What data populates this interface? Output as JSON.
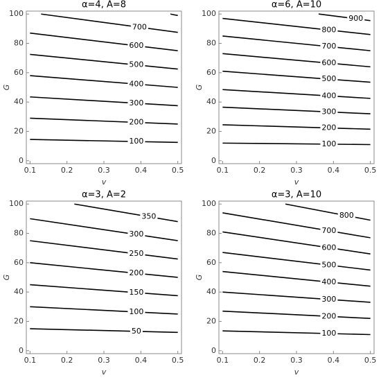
{
  "chart_data": [
    {
      "type": "contour",
      "title": "α=4, A=8",
      "x_label": "v",
      "y_label": "G",
      "xlim": [
        0.09,
        0.51
      ],
      "ylim": [
        -2,
        102
      ],
      "xticks": [
        0.1,
        0.2,
        0.3,
        0.4,
        0.5
      ],
      "yticks": [
        0,
        20,
        40,
        60,
        80,
        100
      ],
      "color": "#000000",
      "contours": [
        {
          "level": 100,
          "x": [
            0.1,
            0.5
          ],
          "y": [
            14.5,
            12.5
          ]
        },
        {
          "level": 200,
          "x": [
            0.1,
            0.5
          ],
          "y": [
            29,
            25
          ]
        },
        {
          "level": 300,
          "x": [
            0.1,
            0.5
          ],
          "y": [
            43.5,
            37.5
          ]
        },
        {
          "level": 400,
          "x": [
            0.1,
            0.5
          ],
          "y": [
            58,
            50
          ]
        },
        {
          "level": 500,
          "x": [
            0.1,
            0.5
          ],
          "y": [
            72.5,
            62.5
          ]
        },
        {
          "level": 600,
          "x": [
            0.1,
            0.5
          ],
          "y": [
            87,
            75
          ]
        },
        {
          "level": 700,
          "x": [
            0.13,
            0.5
          ],
          "y": [
            100,
            87.5
          ]
        },
        {
          "x": [
            0.48,
            0.5
          ],
          "y": [
            100,
            99
          ]
        }
      ]
    },
    {
      "type": "contour",
      "title": "α=6, A=10",
      "x_label": "v",
      "y_label": "G",
      "xlim": [
        0.09,
        0.51
      ],
      "ylim": [
        -2,
        102
      ],
      "xticks": [
        0.1,
        0.2,
        0.3,
        0.4,
        0.5
      ],
      "yticks": [
        0,
        20,
        40,
        60,
        80,
        100
      ],
      "color": "#000000",
      "contours": [
        {
          "level": 100,
          "x": [
            0.1,
            0.5
          ],
          "y": [
            12,
            11
          ]
        },
        {
          "level": 200,
          "x": [
            0.1,
            0.5
          ],
          "y": [
            24.5,
            21.5
          ]
        },
        {
          "level": 300,
          "x": [
            0.1,
            0.5
          ],
          "y": [
            36.5,
            32
          ]
        },
        {
          "level": 400,
          "x": [
            0.1,
            0.5
          ],
          "y": [
            48.5,
            42.5
          ]
        },
        {
          "level": 500,
          "x": [
            0.1,
            0.5
          ],
          "y": [
            61,
            53.5
          ]
        },
        {
          "level": 600,
          "x": [
            0.1,
            0.5
          ],
          "y": [
            73,
            64
          ]
        },
        {
          "level": 700,
          "x": [
            0.1,
            0.5
          ],
          "y": [
            85,
            75
          ]
        },
        {
          "level": 800,
          "x": [
            0.1,
            0.5
          ],
          "y": [
            97,
            86
          ]
        },
        {
          "level": 900,
          "x": [
            0.36,
            0.5
          ],
          "y": [
            100,
            95.5
          ]
        }
      ]
    },
    {
      "type": "contour",
      "title": "α=3, A=2",
      "x_label": "v",
      "y_label": "G",
      "xlim": [
        0.09,
        0.51
      ],
      "ylim": [
        -2,
        102
      ],
      "xticks": [
        0.1,
        0.2,
        0.3,
        0.4,
        0.5
      ],
      "yticks": [
        0,
        20,
        40,
        60,
        80,
        100
      ],
      "color": "#000000",
      "contours": [
        {
          "level": 50,
          "x": [
            0.1,
            0.5
          ],
          "y": [
            15,
            12.5
          ]
        },
        {
          "level": 100,
          "x": [
            0.1,
            0.5
          ],
          "y": [
            30,
            25
          ]
        },
        {
          "level": 150,
          "x": [
            0.1,
            0.5
          ],
          "y": [
            45,
            37.5
          ]
        },
        {
          "level": 200,
          "x": [
            0.1,
            0.5
          ],
          "y": [
            60,
            50
          ]
        },
        {
          "level": 250,
          "x": [
            0.1,
            0.5
          ],
          "y": [
            75,
            62.5
          ]
        },
        {
          "level": 300,
          "x": [
            0.1,
            0.5
          ],
          "y": [
            90,
            75
          ]
        },
        {
          "level": 350,
          "x": [
            0.22,
            0.5
          ],
          "y": [
            100,
            88
          ]
        }
      ]
    },
    {
      "type": "contour",
      "title": "α=3, A=10",
      "x_label": "v",
      "y_label": "G",
      "xlim": [
        0.09,
        0.51
      ],
      "ylim": [
        -2,
        102
      ],
      "xticks": [
        0.1,
        0.2,
        0.3,
        0.4,
        0.5
      ],
      "yticks": [
        0,
        20,
        40,
        60,
        80,
        100
      ],
      "color": "#000000",
      "contours": [
        {
          "level": 100,
          "x": [
            0.1,
            0.5
          ],
          "y": [
            13.5,
            11
          ]
        },
        {
          "level": 200,
          "x": [
            0.1,
            0.5
          ],
          "y": [
            27,
            22
          ]
        },
        {
          "level": 300,
          "x": [
            0.1,
            0.5
          ],
          "y": [
            40,
            33
          ]
        },
        {
          "level": 400,
          "x": [
            0.1,
            0.5
          ],
          "y": [
            54,
            44
          ]
        },
        {
          "level": 500,
          "x": [
            0.1,
            0.5
          ],
          "y": [
            67,
            55
          ]
        },
        {
          "level": 600,
          "x": [
            0.1,
            0.5
          ],
          "y": [
            81,
            66
          ]
        },
        {
          "level": 700,
          "x": [
            0.1,
            0.5
          ],
          "y": [
            94,
            77
          ]
        },
        {
          "level": 800,
          "x": [
            0.27,
            0.5
          ],
          "y": [
            100,
            89
          ]
        }
      ]
    }
  ]
}
